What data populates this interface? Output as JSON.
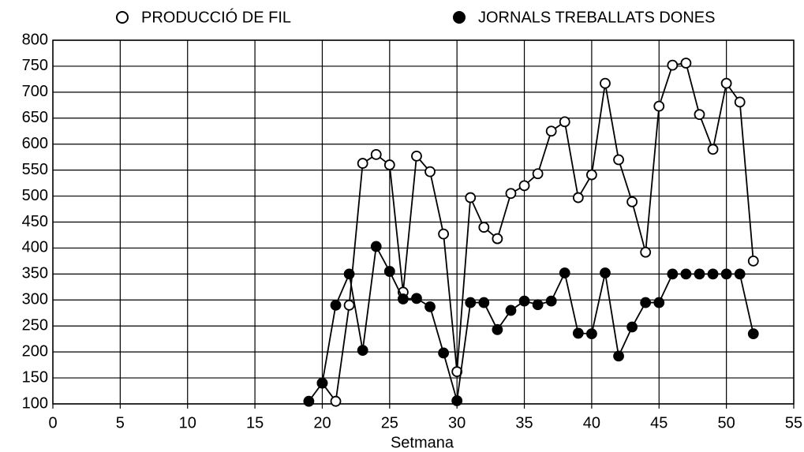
{
  "chart_data": {
    "type": "line",
    "x_label": "Setmana",
    "x": [
      19,
      20,
      21,
      22,
      23,
      24,
      25,
      26,
      27,
      28,
      29,
      30,
      31,
      32,
      33,
      34,
      35,
      36,
      37,
      38,
      39,
      40,
      41,
      42,
      43,
      44,
      45,
      46,
      47,
      48,
      49,
      50,
      51,
      52
    ],
    "series": [
      {
        "name": "PRODUCCIÓ DE FIL",
        "color": "#000000",
        "marker": "open",
        "values": [
          null,
          140,
          105,
          290,
          563,
          580,
          560,
          315,
          577,
          547,
          427,
          162,
          497,
          440,
          418,
          505,
          520,
          543,
          625,
          643,
          497,
          541,
          717,
          570,
          489,
          392,
          673,
          752,
          756,
          657,
          590,
          717,
          681,
          375
        ]
      },
      {
        "name": "JORNALS TREBALLATS DONES",
        "color": "#000000",
        "marker": "filled",
        "values": [
          105,
          140,
          290,
          350,
          203,
          403,
          355,
          302,
          303,
          287,
          198,
          106,
          295,
          295,
          243,
          280,
          298,
          291,
          298,
          352,
          236,
          235,
          352,
          192,
          248,
          295,
          295,
          350,
          350,
          350,
          350,
          350,
          350,
          235
        ]
      }
    ],
    "xlim": [
      0,
      55
    ],
    "xticks": [
      0,
      5,
      10,
      15,
      20,
      25,
      30,
      35,
      40,
      45,
      50,
      55
    ],
    "ylim": [
      100,
      800
    ],
    "yticks": [
      100,
      150,
      200,
      250,
      300,
      350,
      400,
      450,
      500,
      550,
      600,
      650,
      700,
      750,
      800
    ],
    "grid": true,
    "legend": "top"
  }
}
